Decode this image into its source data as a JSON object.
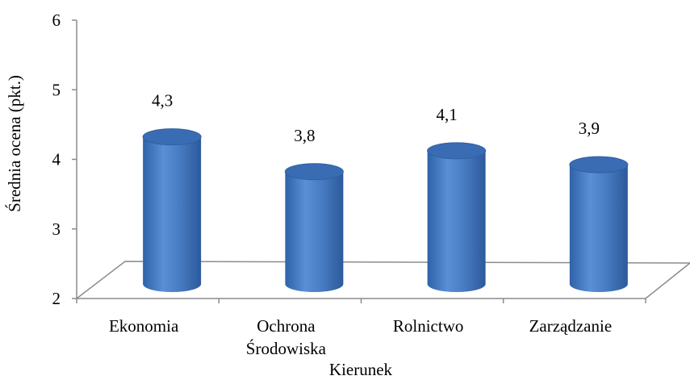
{
  "chart_data": {
    "type": "bar",
    "style": "3d-cylinder",
    "categories": [
      "Ekonomia",
      "Ochrona Środowiska",
      "Rolnictwo",
      "Zarządzanie"
    ],
    "category_label_lines": [
      [
        "Ekonomia"
      ],
      [
        "Ochrona",
        "Środowiska"
      ],
      [
        "Rolnictwo"
      ],
      [
        "Zarządzanie"
      ]
    ],
    "values": [
      4.3,
      3.8,
      4.1,
      3.9
    ],
    "data_labels": [
      "4,3",
      "3,8",
      "4,1",
      "3,9"
    ],
    "xlabel": "Kierunek",
    "ylabel": "Średnia ocena (pkt.)",
    "ylim": [
      2,
      6
    ],
    "yticks": [
      2,
      3,
      4,
      5,
      6
    ],
    "ytick_labels": [
      "2",
      "3",
      "4",
      "5",
      "6"
    ],
    "grid": false,
    "legend": "none"
  },
  "colors": {
    "bar_body": "#4a7ec4",
    "bar_edge": "#2e5fa3",
    "bar_top": "#3a6cb3",
    "axis": "#8c8c8c"
  }
}
